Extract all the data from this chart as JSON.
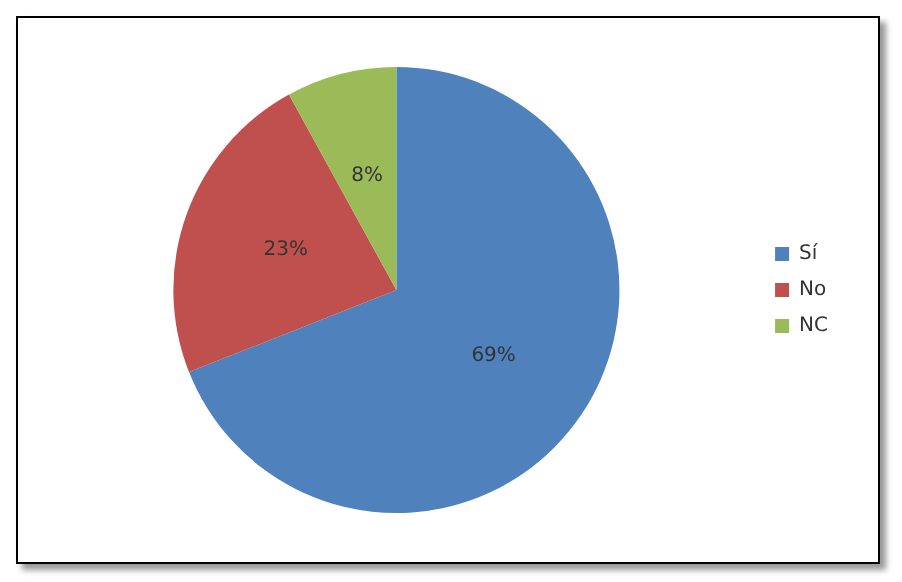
{
  "chart_data": {
    "type": "pie",
    "categories": [
      "Sí",
      "No",
      "NC"
    ],
    "values": [
      69,
      23,
      8
    ],
    "value_labels": [
      "69%",
      "23%",
      "8%"
    ],
    "colors": [
      "#4f81bd",
      "#c0504d",
      "#9bbb59"
    ],
    "legend": "right"
  }
}
